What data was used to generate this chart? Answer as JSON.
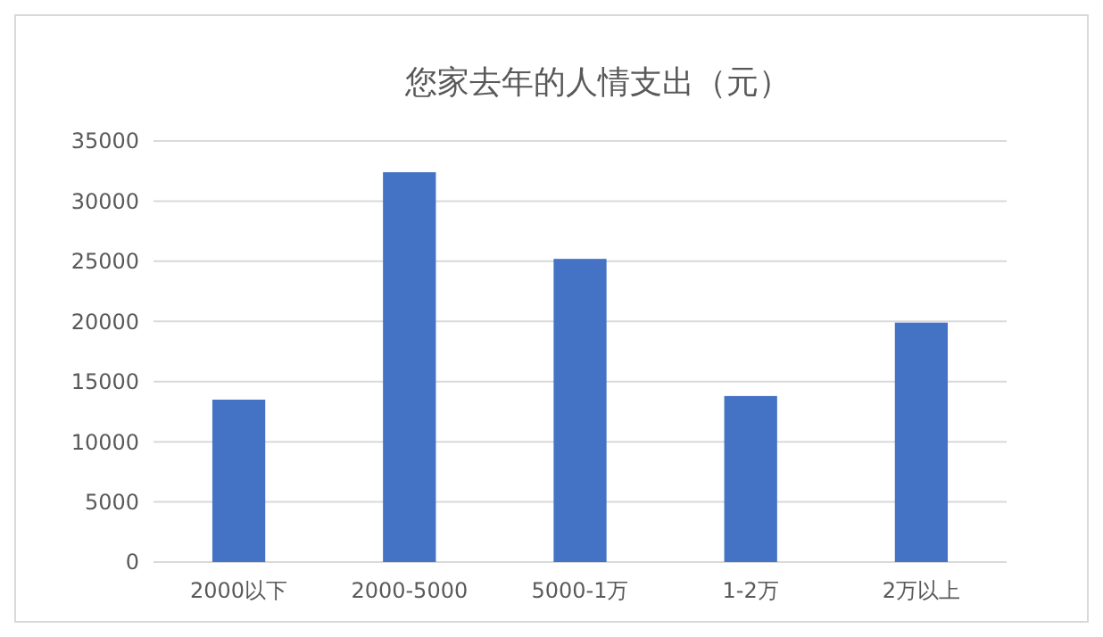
{
  "chart_data": {
    "type": "bar",
    "title": "您家去年的人情支出（元）",
    "categories": [
      "2000以下",
      "2000-5000",
      "5000-1万",
      "1-2万",
      "2万以上"
    ],
    "values": [
      13500,
      32400,
      25200,
      13800,
      19900
    ],
    "color": "#4472c4",
    "ylim": [
      0,
      35000
    ],
    "yticks": [
      0,
      5000,
      10000,
      15000,
      20000,
      25000,
      30000,
      35000
    ],
    "grid": "y"
  }
}
